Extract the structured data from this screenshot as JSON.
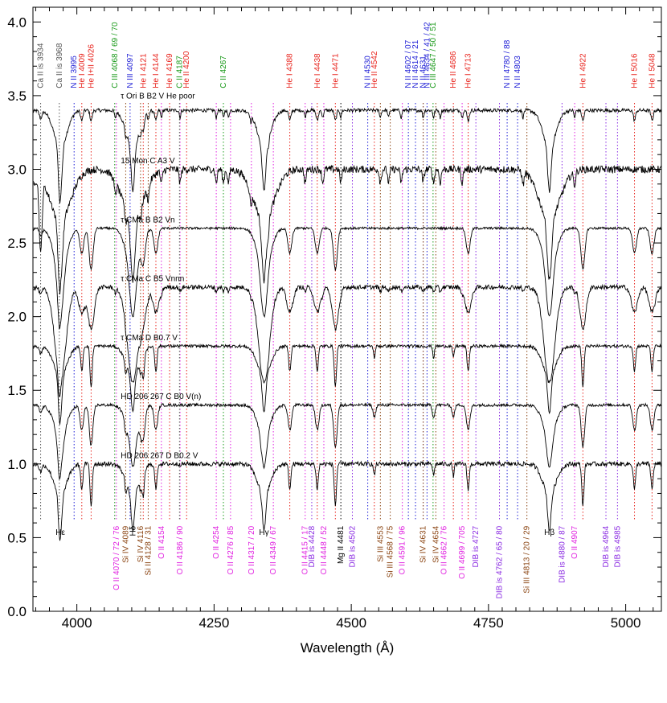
{
  "chart_data": {
    "type": "line",
    "title": "",
    "xlabel": "Wavelength (Å)",
    "ylabel": "",
    "xlim": [
      3920,
      5065
    ],
    "ylim": [
      0.0,
      4.1
    ],
    "x_ticks": [
      4000,
      4250,
      4500,
      4750,
      5000
    ],
    "x_tick_labels": [
      "4000",
      "4250",
      "4500",
      "4750",
      "5000"
    ],
    "y_ticks": [
      0.0,
      0.5,
      1.0,
      1.5,
      2.0,
      2.5,
      3.0,
      3.5,
      4.0
    ],
    "y_tick_labels": [
      "0.0",
      "0.5",
      "1.0",
      "1.5",
      "2.0",
      "2.5",
      "3.0",
      "3.5",
      "4.0"
    ],
    "grid": false,
    "colors": {
      "He": "#e8231c",
      "N": "#1f1fd6",
      "C": "#1a9a1a",
      "Ca": "#555555",
      "O": "#e020e0",
      "Si": "#8b4513",
      "DIB": "#8a2be2",
      "Mg": "#000000",
      "H": "#000000"
    },
    "series": [
      {
        "name": "τ Ori B    B2 V He poor",
        "offset": 3.4,
        "type": "Bp",
        "width": 1.0,
        "noise": 0.012,
        "balmer": 0.55
      },
      {
        "name": "15 Mon C    A3 V",
        "offset": 3.0,
        "type": "A",
        "width": 1.3,
        "noise": 0.025,
        "balmer": 0.75
      },
      {
        "name": "τ CMa B    B2 Vn",
        "offset": 2.6,
        "type": "B2",
        "width": 1.8,
        "noise": 0.008,
        "balmer": 0.6
      },
      {
        "name": "τ CMa C    B5 Vnnn",
        "offset": 2.2,
        "type": "B5",
        "width": 2.8,
        "noise": 0.015,
        "balmer": 0.65
      },
      {
        "name": "τ CMa D    B0.7 V",
        "offset": 1.8,
        "type": "B0",
        "width": 1.0,
        "noise": 0.01,
        "balmer": 0.45
      },
      {
        "name": "HD 206 267 C    B0 V(n)",
        "offset": 1.4,
        "type": "B0",
        "width": 1.6,
        "noise": 0.01,
        "balmer": 0.42
      },
      {
        "name": "HD 206 267 D    B0.2 V",
        "offset": 1.0,
        "type": "B0",
        "width": 1.0,
        "noise": 0.015,
        "balmer": 0.45
      }
    ],
    "top_labels": [
      {
        "text": "Ca II is 3934",
        "wl": 3934,
        "color": "Ca"
      },
      {
        "text": "Ca II is 3968",
        "wl": 3968,
        "color": "Ca"
      },
      {
        "text": "N II 3995",
        "wl": 3995,
        "color": "N"
      },
      {
        "text": "He I 4009",
        "wl": 4009,
        "color": "He"
      },
      {
        "text": "He I+II 4026",
        "wl": 4026,
        "color": "He"
      },
      {
        "text": "C III 4068 / 69 / 70",
        "wl": 4069,
        "color": "C"
      },
      {
        "text": "N III 4097",
        "wl": 4097,
        "color": "N"
      },
      {
        "text": "He I 4121",
        "wl": 4121,
        "color": "He"
      },
      {
        "text": "He I 4144",
        "wl": 4144,
        "color": "He"
      },
      {
        "text": "He I 4169",
        "wl": 4169,
        "color": "He"
      },
      {
        "text": "C II 4187",
        "wl": 4187,
        "color": "C"
      },
      {
        "text": "He II 4200",
        "wl": 4200,
        "color": "He"
      },
      {
        "text": "C II 4267",
        "wl": 4267,
        "color": "C"
      },
      {
        "text": "He I 4388",
        "wl": 4388,
        "color": "He"
      },
      {
        "text": "He I 4438",
        "wl": 4438,
        "color": "He"
      },
      {
        "text": "He I 4471",
        "wl": 4471,
        "color": "He"
      },
      {
        "text": "N II 4530",
        "wl": 4530,
        "color": "N"
      },
      {
        "text": "He II 4542",
        "wl": 4542,
        "color": "He"
      },
      {
        "text": "N II 4602 / 07",
        "wl": 4604,
        "color": "N"
      },
      {
        "text": "N II 4614 / 21",
        "wl": 4617,
        "color": "N"
      },
      {
        "text": "N II 4631",
        "wl": 4631,
        "color": "N"
      },
      {
        "text": "N III 4634 / 41 / 42",
        "wl": 4638,
        "color": "N"
      },
      {
        "text": "C III 4647 / 50 / 51",
        "wl": 4649,
        "color": "C"
      },
      {
        "text": "He II 4686",
        "wl": 4686,
        "color": "He"
      },
      {
        "text": "He I 4713",
        "wl": 4713,
        "color": "He"
      },
      {
        "text": "N II 4780 / 88",
        "wl": 4784,
        "color": "N"
      },
      {
        "text": "N II 4803",
        "wl": 4803,
        "color": "N"
      },
      {
        "text": "He I 4922",
        "wl": 4922,
        "color": "He"
      },
      {
        "text": "He I 5016",
        "wl": 5016,
        "color": "He"
      },
      {
        "text": "He I 5048",
        "wl": 5048,
        "color": "He"
      }
    ],
    "bottom_labels": [
      {
        "text": "Hε",
        "wl": 3970,
        "color": "H",
        "rotate": false
      },
      {
        "text": "O II 4070 / 72 / 76",
        "wl": 4072,
        "color": "O",
        "rotate": true
      },
      {
        "text": "Si IV 4089",
        "wl": 4089,
        "color": "Si",
        "rotate": true
      },
      {
        "text": "Hδ",
        "wl": 4102,
        "color": "H",
        "rotate": true
      },
      {
        "text": "Si IV 4116",
        "wl": 4116,
        "color": "Si",
        "rotate": true
      },
      {
        "text": "Si II 4128 / 31",
        "wl": 4130,
        "color": "Si",
        "rotate": true
      },
      {
        "text": "O II 4154",
        "wl": 4154,
        "color": "O",
        "rotate": true
      },
      {
        "text": "O II 4186 / 90",
        "wl": 4188,
        "color": "O",
        "rotate": true
      },
      {
        "text": "O II 4254",
        "wl": 4254,
        "color": "O",
        "rotate": true
      },
      {
        "text": "O II 4276 / 85",
        "wl": 4280,
        "color": "O",
        "rotate": true
      },
      {
        "text": "O II 4317 / 20",
        "wl": 4318,
        "color": "O",
        "rotate": true
      },
      {
        "text": "Hγ",
        "wl": 4341,
        "color": "H",
        "rotate": false
      },
      {
        "text": "O II 4349 / 67",
        "wl": 4358,
        "color": "O",
        "rotate": true
      },
      {
        "text": "O II 4415 / 17",
        "wl": 4416,
        "color": "O",
        "rotate": true
      },
      {
        "text": "DIB is 4428",
        "wl": 4428,
        "color": "DIB",
        "rotate": true
      },
      {
        "text": "O II 4448 / 52",
        "wl": 4450,
        "color": "O",
        "rotate": true
      },
      {
        "text": "Mg II 4481",
        "wl": 4481,
        "color": "Mg",
        "rotate": true
      },
      {
        "text": "DIB is 4502",
        "wl": 4502,
        "color": "DIB",
        "rotate": true
      },
      {
        "text": "Si III 4553",
        "wl": 4553,
        "color": "Si",
        "rotate": true
      },
      {
        "text": "Si III 4568 / 75",
        "wl": 4571,
        "color": "Si",
        "rotate": true
      },
      {
        "text": "O II 4591 / 96",
        "wl": 4593,
        "color": "O",
        "rotate": true
      },
      {
        "text": "Si IV 4631",
        "wl": 4631,
        "color": "Si",
        "rotate": true
      },
      {
        "text": "Si IV 4654",
        "wl": 4654,
        "color": "Si",
        "rotate": true
      },
      {
        "text": "O II 4662 / 76",
        "wl": 4669,
        "color": "O",
        "rotate": true
      },
      {
        "text": "O II 4699 / 705",
        "wl": 4702,
        "color": "O",
        "rotate": true
      },
      {
        "text": "DIB is 4727",
        "wl": 4727,
        "color": "DIB",
        "rotate": true
      },
      {
        "text": "DIB is 4762 / 65 / 80",
        "wl": 4770,
        "color": "DIB",
        "rotate": true
      },
      {
        "text": "Si III 4813 / 20 / 29",
        "wl": 4820,
        "color": "Si",
        "rotate": true
      },
      {
        "text": "Hβ",
        "wl": 4861,
        "color": "H",
        "rotate": false
      },
      {
        "text": "DIB is 4880 / 87",
        "wl": 4884,
        "color": "DIB",
        "rotate": true
      },
      {
        "text": "O II 4907",
        "wl": 4907,
        "color": "O",
        "rotate": true
      },
      {
        "text": "DIB is 4964",
        "wl": 4964,
        "color": "DIB",
        "rotate": true
      },
      {
        "text": "DIB is 4985",
        "wl": 4985,
        "color": "DIB",
        "rotate": true
      }
    ]
  }
}
